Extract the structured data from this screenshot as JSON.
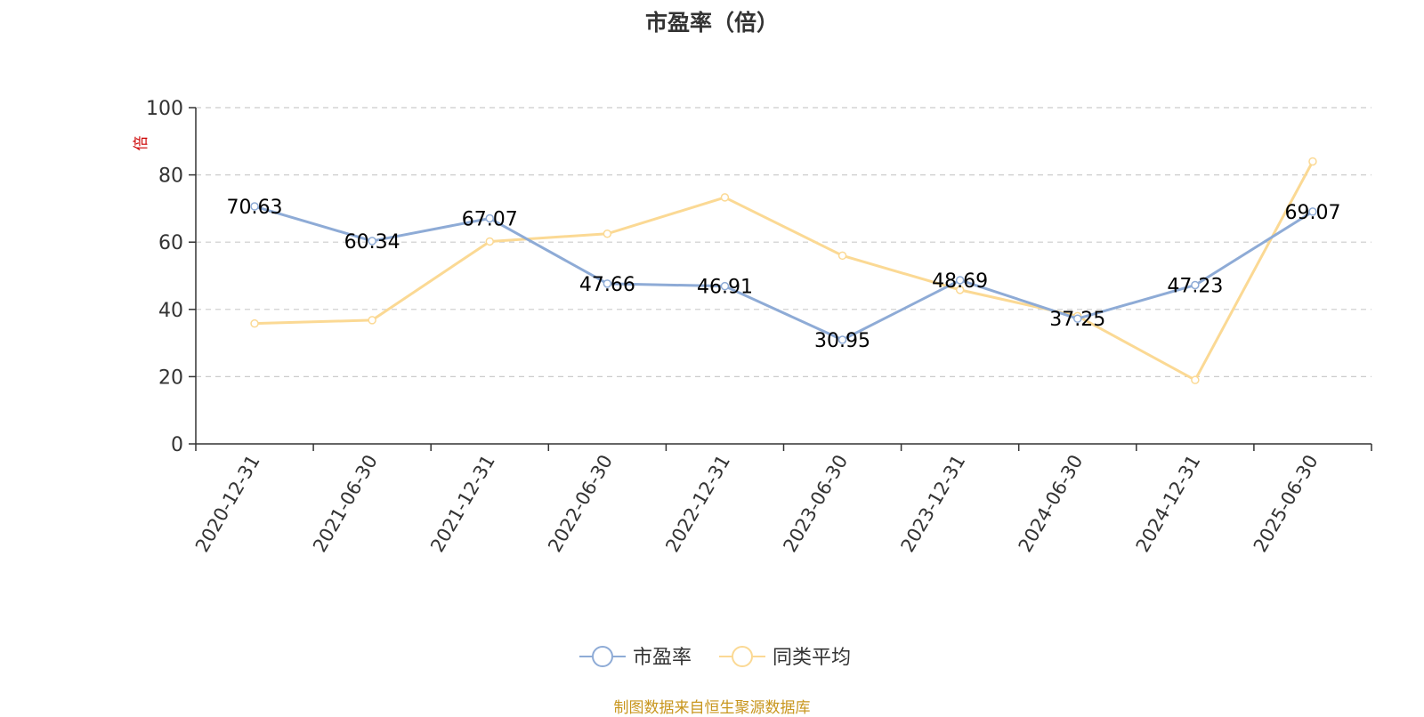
{
  "chart_data": {
    "type": "line",
    "title": "市盈率（倍）",
    "ylabel": "倍",
    "ylim": [
      0,
      100
    ],
    "yticks": [
      0,
      20,
      40,
      60,
      80,
      100
    ],
    "grid": true,
    "legend_position": "bottom-center",
    "categories": [
      "2020-12-31",
      "2021-06-30",
      "2021-12-31",
      "2022-06-30",
      "2022-12-31",
      "2023-06-30",
      "2023-12-31",
      "2024-06-30",
      "2024-12-31",
      "2025-06-30"
    ],
    "series": [
      {
        "name": "市盈率",
        "color": "#8eabd6",
        "values": [
          70.63,
          60.34,
          67.07,
          47.66,
          46.91,
          30.95,
          48.69,
          37.25,
          47.23,
          69.07
        ],
        "labels": [
          "70.63",
          "60.34",
          "67.07",
          "47.66",
          "46.91",
          "30.95",
          "48.69",
          "37.25",
          "47.23",
          "69.07"
        ]
      },
      {
        "name": "同类平均",
        "color": "#fbd994",
        "values": [
          35.8,
          36.8,
          60.2,
          62.5,
          73.3,
          56.0,
          45.8,
          38.0,
          19.0,
          84.0
        ]
      }
    ]
  },
  "footer": {
    "text": "制图数据来自恒生聚源数据库",
    "color": "#c8961e"
  },
  "ylabel_color": "#cc0000"
}
